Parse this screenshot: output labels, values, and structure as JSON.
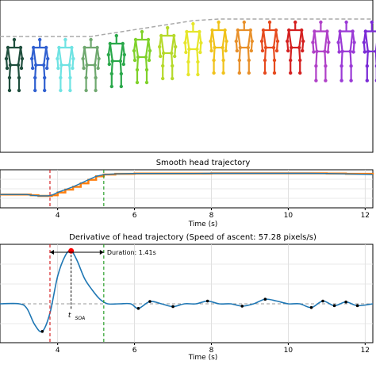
{
  "chart_data": [
    {
      "type": "line",
      "panel": "skeletons",
      "figure_colors": [
        "#1f4e3d",
        "#2f5fd0",
        "#6fe3e3",
        "#6fa86f",
        "#2aa84a",
        "#7fd12a",
        "#b5d92a",
        "#e6e62a",
        "#f0c21a",
        "#e8902a",
        "#e64a1e",
        "#d42020",
        "#b040c8",
        "#9a3ad6",
        "#7a2ad6"
      ]
    },
    {
      "type": "line",
      "panel": "smooth",
      "title": "Smooth head trajectory",
      "xlabel": "Time (s)",
      "xticks": [
        4,
        6,
        8,
        10,
        12
      ],
      "xlim": [
        2.5,
        12.2
      ],
      "series": [
        {
          "color": "#1f77b4",
          "x": [
            2.5,
            3.2,
            3.3,
            3.5,
            3.7,
            3.75,
            3.85,
            4.0,
            4.2,
            4.4,
            4.6,
            4.8,
            5.0,
            5.2,
            5.5,
            6.0,
            6.5,
            7.0,
            7.5,
            8.0,
            8.5,
            9.0,
            9.5,
            10.0,
            10.5,
            11.0,
            11.5,
            12.2
          ],
          "y": [
            0.38,
            0.38,
            0.36,
            0.34,
            0.34,
            0.34,
            0.36,
            0.44,
            0.52,
            0.6,
            0.7,
            0.8,
            0.9,
            0.95,
            0.97,
            0.98,
            0.98,
            0.98,
            0.98,
            0.985,
            0.985,
            0.985,
            0.985,
            0.985,
            0.985,
            0.98,
            0.97,
            0.95
          ]
        }
      ],
      "vlines": [
        {
          "x": 3.8,
          "color": "#d62728"
        },
        {
          "x": 5.2,
          "color": "#2ca02c"
        }
      ]
    },
    {
      "type": "line",
      "panel": "derivative",
      "title": "Derivative of head trajectory (Speed of ascent: 57.28 pixels/s)",
      "xlabel": "Time (s)",
      "xticks": [
        4,
        6,
        8,
        10,
        12
      ],
      "xlim": [
        2.5,
        12.2
      ],
      "annotation_duration": "Duration: 1.41s",
      "annotation_tsoa": "t",
      "annotation_tsoa_sub": "SOA",
      "series": [
        {
          "color": "#1f77b4",
          "x": [
            2.5,
            3.0,
            3.2,
            3.4,
            3.6,
            3.8,
            4.0,
            4.2,
            4.35,
            4.5,
            4.7,
            4.9,
            5.1,
            5.3,
            5.6,
            5.9,
            6.1,
            6.4,
            6.7,
            7.0,
            7.3,
            7.6,
            7.9,
            8.2,
            8.5,
            8.8,
            9.1,
            9.4,
            9.7,
            10.0,
            10.3,
            10.6,
            10.9,
            11.2,
            11.5,
            11.8,
            12.2
          ],
          "y": [
            0,
            0,
            -0.1,
            -0.45,
            -0.6,
            -0.2,
            0.6,
            1.05,
            1.15,
            0.95,
            0.55,
            0.3,
            0.1,
            0.0,
            0.0,
            0.0,
            -0.1,
            0.05,
            0.0,
            -0.06,
            0.0,
            0.0,
            0.06,
            0.0,
            0.0,
            -0.05,
            0.0,
            0.1,
            0.06,
            0.0,
            0.0,
            -0.08,
            0.06,
            -0.04,
            0.04,
            -0.04,
            0.0
          ]
        }
      ],
      "peak": {
        "x": 4.35,
        "y": 1.15,
        "color": "#ff0000"
      },
      "vlines": [
        {
          "x": 3.8,
          "color": "#d62728"
        },
        {
          "x": 5.2,
          "color": "#2ca02c"
        }
      ]
    }
  ]
}
